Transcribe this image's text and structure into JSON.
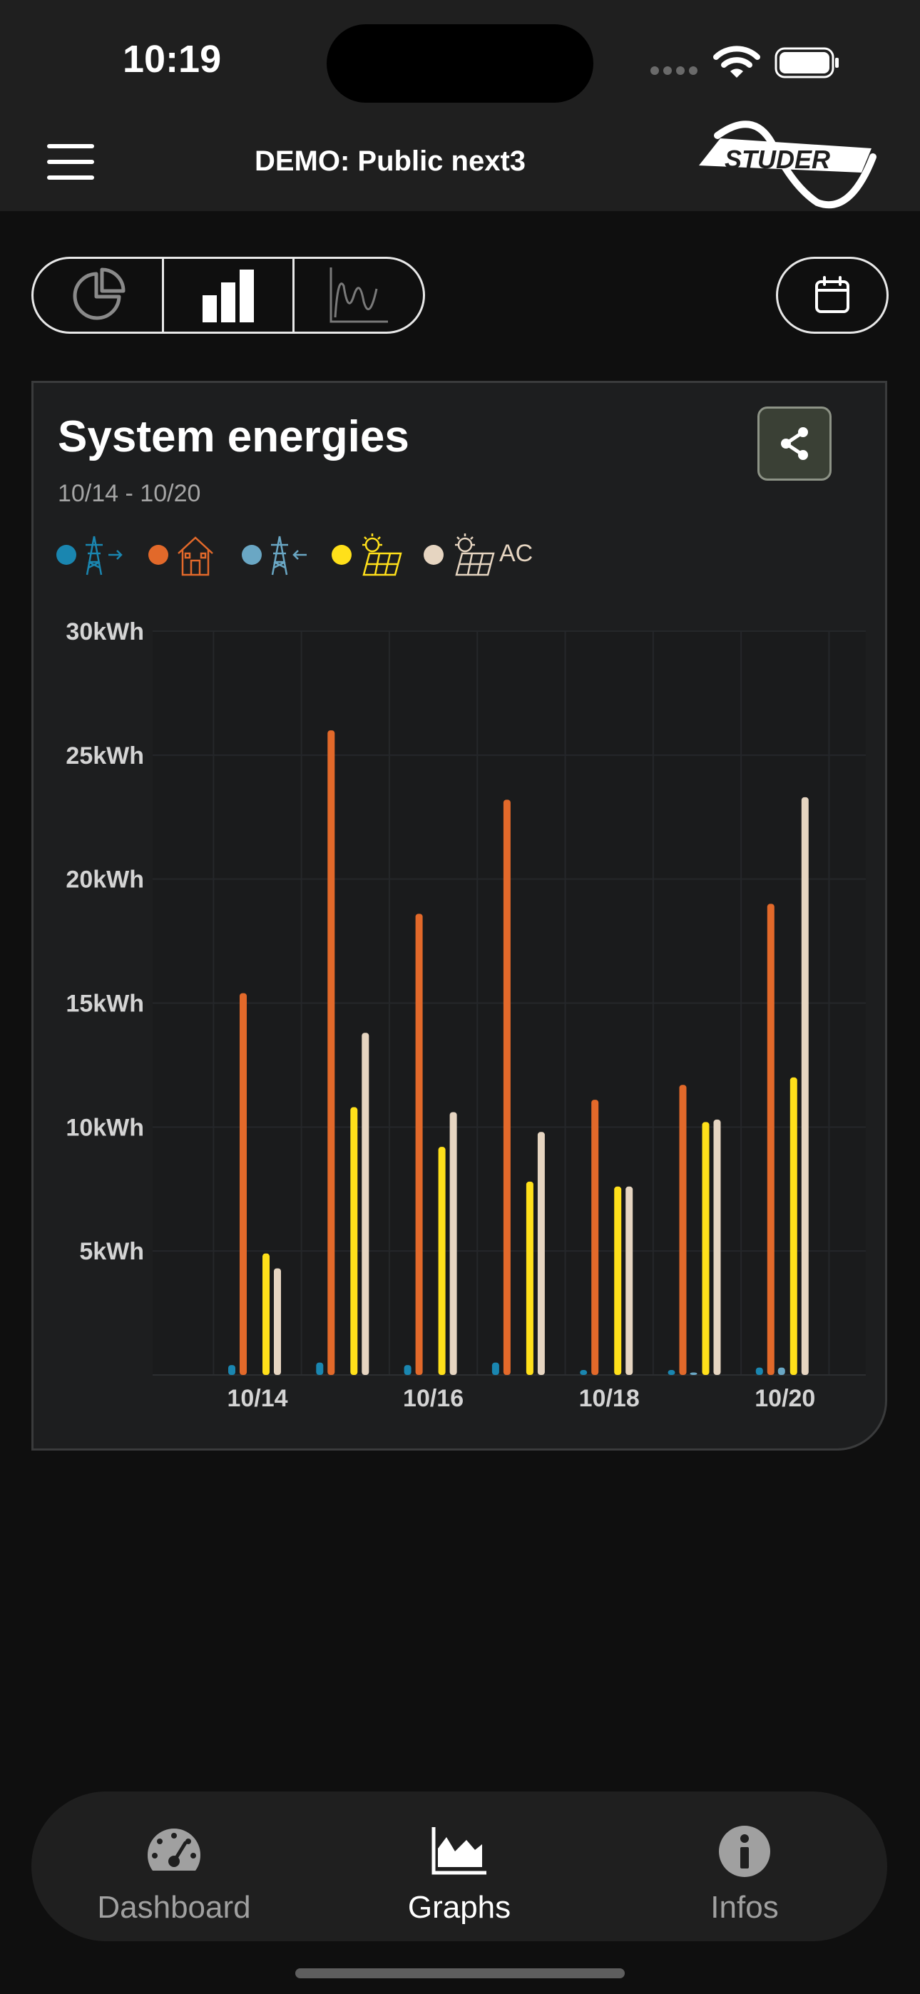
{
  "status_bar": {
    "time": "10:19"
  },
  "header": {
    "title": "DEMO: Public next3",
    "logo_text": "STUDER"
  },
  "view_switcher": {
    "options": [
      {
        "icon": "pie-chart-icon",
        "selected": false
      },
      {
        "icon": "bar-chart-icon",
        "selected": true
      },
      {
        "icon": "line-chart-icon",
        "selected": false
      }
    ]
  },
  "calendar_button": {
    "icon": "calendar-icon"
  },
  "card": {
    "title": "System energies",
    "date_range": "10/14 - 10/20",
    "share_icon": "share-icon",
    "legend": [
      {
        "icon": "grid-export-icon",
        "color": "#1a86b0"
      },
      {
        "icon": "house-consumption-icon",
        "color": "#e2692a"
      },
      {
        "icon": "grid-import-icon",
        "color": "#6aa7c4"
      },
      {
        "icon": "solar-icon",
        "color": "#ffe01a"
      },
      {
        "icon": "solar-ac-icon",
        "color": "#e6d5c1",
        "suffix": "AC"
      }
    ]
  },
  "chart_data": {
    "type": "bar",
    "categories": [
      "10/14",
      "10/15",
      "10/16",
      "10/17",
      "10/18",
      "10/19",
      "10/20"
    ],
    "x_tick_labels": [
      "10/14",
      "10/16",
      "10/18",
      "10/20"
    ],
    "y_tick_labels": [
      "5kWh",
      "10kWh",
      "15kWh",
      "20kWh",
      "25kWh",
      "30kWh"
    ],
    "ylim": [
      0,
      30
    ],
    "unit": "kWh",
    "grid": true,
    "series": [
      {
        "color": "#1a86b0",
        "values": [
          0.4,
          0.5,
          0.4,
          0.5,
          0.2,
          0.2,
          0.3
        ]
      },
      {
        "color": "#e2692a",
        "values": [
          15.4,
          26.0,
          18.6,
          23.2,
          11.1,
          11.7,
          19.0
        ]
      },
      {
        "color": "#6aa7c4",
        "values": [
          0.0,
          0.0,
          0.0,
          0.0,
          0.0,
          0.1,
          0.3
        ]
      },
      {
        "color": "#ffe01a",
        "values": [
          4.9,
          10.8,
          9.2,
          7.8,
          7.6,
          10.2,
          12.0
        ]
      },
      {
        "color": "#e6d5c1",
        "values": [
          4.3,
          13.8,
          10.6,
          9.8,
          7.6,
          10.3,
          23.3
        ]
      }
    ]
  },
  "bottom_nav": {
    "items": [
      {
        "label": "Dashboard",
        "icon": "gauge-icon",
        "active": false
      },
      {
        "label": "Graphs",
        "icon": "area-chart-icon",
        "active": true
      },
      {
        "label": "Infos",
        "icon": "info-icon",
        "active": false
      }
    ]
  },
  "colors": {
    "active": "#ffffff",
    "inactive": "#a0a0a0",
    "card_bg": "#1d1e1f"
  }
}
